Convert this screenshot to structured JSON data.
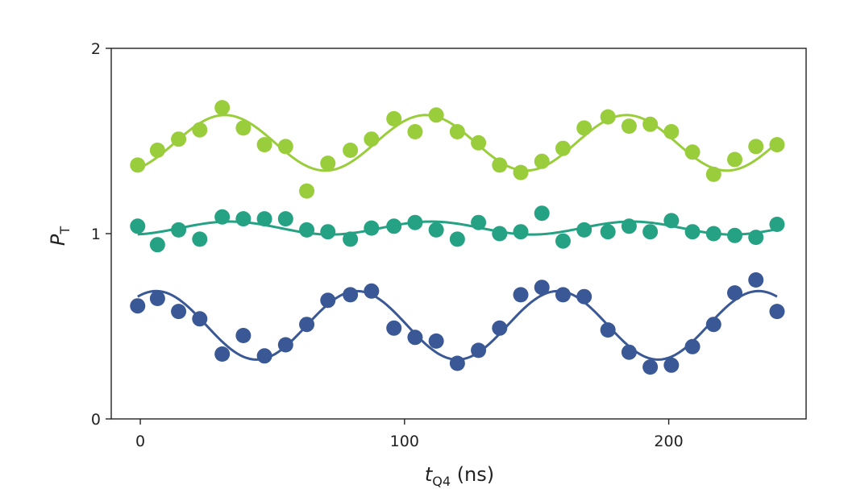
{
  "chart_data": {
    "type": "scatter",
    "title": "",
    "xlabel": {
      "main": "t",
      "sub": "Q4",
      "unit": " (ns)"
    },
    "ylabel": {
      "main": "P",
      "sub": "T"
    },
    "xlim": [
      -11,
      252
    ],
    "ylim": [
      0,
      2
    ],
    "xticks": [
      0,
      100,
      200
    ],
    "yticks": [
      0,
      1,
      2
    ],
    "grid": false,
    "legend": "none",
    "series": [
      {
        "color": "#9acd3c",
        "x": [
          -1,
          6.5,
          14.5,
          22.5,
          31,
          39,
          47,
          55,
          63,
          71,
          79.5,
          87.5,
          96,
          104,
          112,
          120,
          128,
          136,
          144,
          152,
          160,
          168,
          177,
          185,
          193,
          201,
          209,
          217,
          225,
          233,
          241
        ],
        "y": [
          1.37,
          1.45,
          1.51,
          1.56,
          1.68,
          1.57,
          1.48,
          1.47,
          1.23,
          1.38,
          1.45,
          1.51,
          1.62,
          1.55,
          1.64,
          1.55,
          1.49,
          1.37,
          1.33,
          1.39,
          1.46,
          1.57,
          1.63,
          1.58,
          1.59,
          1.55,
          1.44,
          1.32,
          1.4,
          1.47,
          1.48
        ],
        "fit": {
          "offset": 1.49,
          "amp": 0.15,
          "period": 76,
          "x_peak": 32
        }
      },
      {
        "color": "#25a283",
        "x": [
          -1,
          6.5,
          14.5,
          22.5,
          31,
          39,
          47,
          55,
          63,
          71,
          79.5,
          87.5,
          96,
          104,
          112,
          120,
          128,
          136,
          144,
          152,
          160,
          168,
          177,
          185,
          193,
          201,
          209,
          217,
          225,
          233,
          241
        ],
        "y": [
          1.04,
          0.94,
          1.02,
          0.97,
          1.09,
          1.08,
          1.08,
          1.08,
          1.02,
          1.01,
          0.97,
          1.03,
          1.04,
          1.06,
          1.02,
          0.97,
          1.06,
          1.0,
          1.01,
          1.11,
          0.96,
          1.02,
          1.01,
          1.04,
          1.01,
          1.07,
          1.01,
          1.0,
          0.99,
          0.98,
          1.05
        ],
        "fit": {
          "offset": 1.03,
          "amp": 0.035,
          "period": 76,
          "x_peak": 34
        }
      },
      {
        "color": "#3a5895",
        "x": [
          -1,
          6.5,
          14.5,
          22.5,
          31,
          39,
          47,
          55,
          63,
          71,
          79.5,
          87.5,
          96,
          104,
          112,
          120,
          128,
          136,
          144,
          152,
          160,
          168,
          177,
          185,
          193,
          201,
          209,
          217,
          225,
          233,
          241
        ],
        "y": [
          0.61,
          0.65,
          0.58,
          0.54,
          0.35,
          0.45,
          0.34,
          0.4,
          0.51,
          0.64,
          0.67,
          0.69,
          0.49,
          0.44,
          0.42,
          0.3,
          0.37,
          0.49,
          0.67,
          0.71,
          0.67,
          0.66,
          0.48,
          0.36,
          0.28,
          0.29,
          0.39,
          0.51,
          0.68,
          0.75,
          0.58
        ],
        "fit": {
          "offset": 0.505,
          "amp": 0.185,
          "period": 76,
          "x_peak": 6
        }
      }
    ]
  }
}
